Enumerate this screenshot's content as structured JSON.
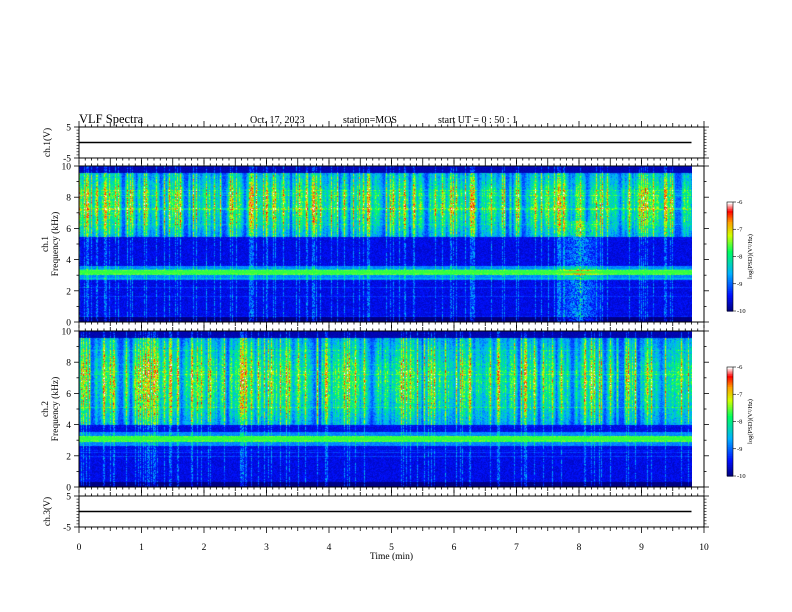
{
  "header": {
    "title": "VLF Spectra",
    "date": "Oct. 17, 2023",
    "station": "station=MOS",
    "start_ut": "start  UT =  0 : 50 : 1"
  },
  "chart_data": [
    {
      "type": "line",
      "panel": "ch.1 waveform",
      "ylabel": "ch.1(V)",
      "ylim": [
        -5,
        5
      ],
      "yticks": [
        "5",
        "-5"
      ],
      "xlim": [
        0,
        10
      ],
      "series": [
        {
          "x": [
            0,
            9.8
          ],
          "y": [
            0,
            0
          ]
        }
      ]
    },
    {
      "type": "heatmap",
      "panel": "ch.1 spectrogram",
      "ylabel": "ch.1\nFrequency (kHz)",
      "ylim": [
        0,
        10
      ],
      "yticks": [
        "0",
        "2",
        "4",
        "6",
        "8",
        "10"
      ],
      "xlim": [
        0,
        10
      ],
      "data_xmax": 9.8,
      "persistent_line_khz": [
        3.2
      ],
      "emission_band_khz": [
        5.5,
        10
      ],
      "broadband_burst_min": [
        7.6,
        8.4
      ],
      "colorbar": {
        "label": "log(PSD)(V²/Hz)",
        "range": [
          -10,
          -6
        ],
        "ticks": [
          "-6",
          "-7",
          "-8",
          "-9",
          "-10"
        ]
      }
    },
    {
      "type": "heatmap",
      "panel": "ch.2 spectrogram",
      "ylabel": "ch.2\nFrequency (kHz)",
      "ylim": [
        0,
        10
      ],
      "yticks": [
        "0",
        "2",
        "4",
        "6",
        "8",
        "10"
      ],
      "xlim": [
        0,
        10
      ],
      "data_xmax": 9.8,
      "persistent_line_khz": [
        3.1
      ],
      "emission_band_khz": [
        4.0,
        10
      ],
      "colorbar": {
        "label": "log(PSD)(V²/Hz)",
        "range": [
          -10,
          -6
        ],
        "ticks": [
          "-6",
          "-7",
          "-8",
          "-9",
          "-10"
        ]
      }
    },
    {
      "type": "line",
      "panel": "ch.3 waveform",
      "ylabel": "ch.3(V)",
      "ylim": [
        -5,
        5
      ],
      "yticks": [
        "5",
        "-5"
      ],
      "xlim": [
        0,
        10
      ],
      "xlabel": "Time (min)",
      "xticks": [
        "0",
        "1",
        "2",
        "3",
        "4",
        "5",
        "6",
        "7",
        "8",
        "9",
        "10"
      ],
      "series": [
        {
          "x": [
            0,
            9.8
          ],
          "y": [
            0,
            0
          ]
        }
      ]
    }
  ],
  "colors": {
    "bg": "#000000",
    "cmap": [
      "#00007a",
      "#0010ff",
      "#00b0ff",
      "#00ff60",
      "#d0ff00",
      "#ffa000",
      "#ff0000",
      "#ffffff"
    ]
  }
}
